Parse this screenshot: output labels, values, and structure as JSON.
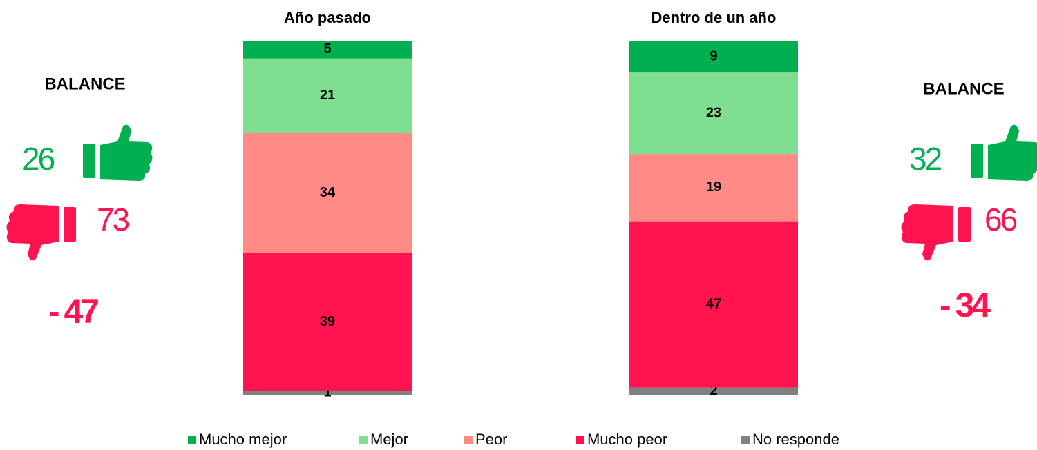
{
  "chart_data": {
    "type": "stacked-bar",
    "categories": [
      "Año pasado",
      "Dentro de un año"
    ],
    "series": [
      {
        "name": "Mucho mejor",
        "color": "#00b050",
        "values": [
          5,
          9
        ]
      },
      {
        "name": "Mejor",
        "color": "#7ddf8f",
        "values": [
          21,
          23
        ]
      },
      {
        "name": "Peor",
        "color": "#ff8a86",
        "values": [
          34,
          19
        ]
      },
      {
        "name": "Mucho peor",
        "color": "#ff1450",
        "values": [
          39,
          47
        ]
      },
      {
        "name": "No responde",
        "color": "#808080",
        "values": [
          1,
          2
        ]
      }
    ]
  },
  "balance": [
    {
      "label": "BALANCE",
      "positive": 26,
      "negative": 73,
      "net": {
        "value": -47,
        "label": "- 47"
      }
    },
    {
      "label": "BALANCE",
      "positive": 32,
      "negative": 66,
      "net": {
        "value": -34,
        "label": "- 34"
      }
    }
  ]
}
